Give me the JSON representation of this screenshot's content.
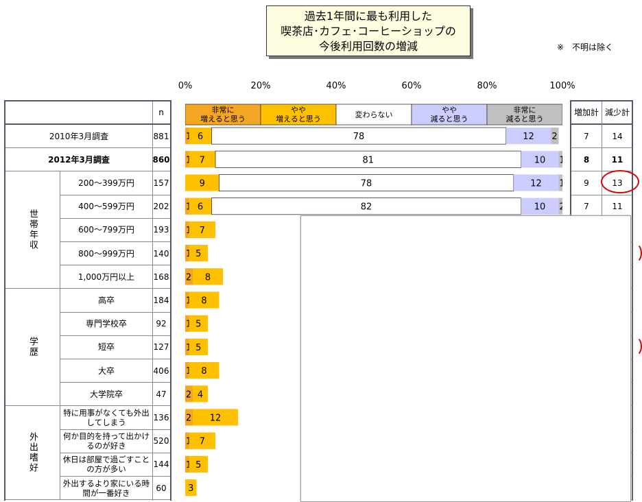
{
  "title_lines": [
    "過去1年間に最も利用した",
    "喫茶店･カフェ･コーヒーショップの",
    "今後利用回数の増減"
  ],
  "note": "※　不明は除く",
  "header": {
    "n_label": "n",
    "inc_label": "増加計",
    "dec_label": "減少計"
  },
  "colors": {
    "very_inc": "#f5a623",
    "inc": "#ffc000",
    "same": "#ffffff",
    "dec": "#ccccff",
    "very_dec": "#c0c0c0"
  },
  "chart_data": {
    "type": "bar",
    "stacked": true,
    "orientation": "horizontal",
    "x_ticks": [
      "0%",
      "20%",
      "40%",
      "60%",
      "80%",
      "100%"
    ],
    "legend": [
      "非常に\n増えると思う",
      "やや\n増えると思う",
      "変わらない",
      "やや\n減ると思う",
      "非常に\n減ると思う"
    ],
    "rows": [
      {
        "group": "",
        "label": "2010年3月調査",
        "n": "881",
        "bold": false,
        "values": [
          1,
          6,
          78,
          12,
          2
        ],
        "labels": [
          "1",
          "6",
          "78",
          "12",
          "2"
        ],
        "inc": "7",
        "dec": "14"
      },
      {
        "group": "",
        "label": "2012年3月調査",
        "n": "860",
        "bold": true,
        "values": [
          1,
          7,
          81,
          10,
          1
        ],
        "labels": [
          "1",
          "7",
          "81",
          "10",
          "1"
        ],
        "inc": "8",
        "dec": "11"
      },
      {
        "group": "世帯年収",
        "label": "200～399万円",
        "n": "157",
        "values": [
          0,
          9,
          78,
          12,
          1
        ],
        "labels": [
          "",
          "9",
          "78",
          "12",
          "1"
        ],
        "inc": "9",
        "dec": "13"
      },
      {
        "group": "世帯年収",
        "label": "400～599万円",
        "n": "202",
        "values": [
          1,
          6,
          82,
          10,
          2
        ],
        "labels": [
          "1",
          "6",
          "82",
          "10",
          "2"
        ],
        "inc": "7",
        "dec": "11"
      },
      {
        "group": "世帯年収",
        "label": "600～799万円",
        "n": "193",
        "values": [
          1,
          7
        ],
        "labels": [
          "1",
          "7"
        ]
      },
      {
        "group": "世帯年収",
        "label": "800～999万円",
        "n": "140",
        "values": [
          1,
          5
        ],
        "labels": [
          "1",
          "5"
        ]
      },
      {
        "group": "世帯年収",
        "label": "1,000万円以上",
        "n": "168",
        "values": [
          2,
          8
        ],
        "labels": [
          "2",
          "8"
        ]
      },
      {
        "group": "学歴",
        "label": "高卒",
        "n": "184",
        "values": [
          1,
          8
        ],
        "labels": [
          "1",
          "8"
        ]
      },
      {
        "group": "学歴",
        "label": "専門学校卒",
        "n": "92",
        "values": [
          1,
          5
        ],
        "labels": [
          "1",
          "5"
        ]
      },
      {
        "group": "学歴",
        "label": "短卒",
        "n": "127",
        "values": [
          1,
          5
        ],
        "labels": [
          "1",
          "5"
        ]
      },
      {
        "group": "学歴",
        "label": "大卒",
        "n": "406",
        "values": [
          1,
          8
        ],
        "labels": [
          "1",
          "8"
        ]
      },
      {
        "group": "学歴",
        "label": "大学院卒",
        "n": "47",
        "values": [
          2,
          4
        ],
        "labels": [
          "2",
          "4"
        ]
      },
      {
        "group": "外出嗜好",
        "label": "特に用事がなくても外出してしまう",
        "n": "136",
        "values": [
          2,
          12
        ],
        "labels": [
          "2",
          "12"
        ]
      },
      {
        "group": "外出嗜好",
        "label": "何か目的を持って出かけるのが好き",
        "n": "520",
        "values": [
          1,
          7
        ],
        "labels": [
          "1",
          "7"
        ]
      },
      {
        "group": "外出嗜好",
        "label": "休日は部屋で過ごすことの方が多い",
        "n": "144",
        "values": [
          1,
          5
        ],
        "labels": [
          "1",
          "5"
        ]
      },
      {
        "group": "外出嗜好",
        "label": "外出するより家にいる時間が一番好き",
        "n": "60",
        "values": [
          0,
          3
        ],
        "labels": [
          "",
          "3"
        ]
      }
    ],
    "groups": [
      {
        "name": "世帯年収",
        "first": 2,
        "last": 6
      },
      {
        "name": "学歴",
        "first": 7,
        "last": 11
      },
      {
        "name": "外出嗜好",
        "first": 12,
        "last": 15
      }
    ]
  }
}
